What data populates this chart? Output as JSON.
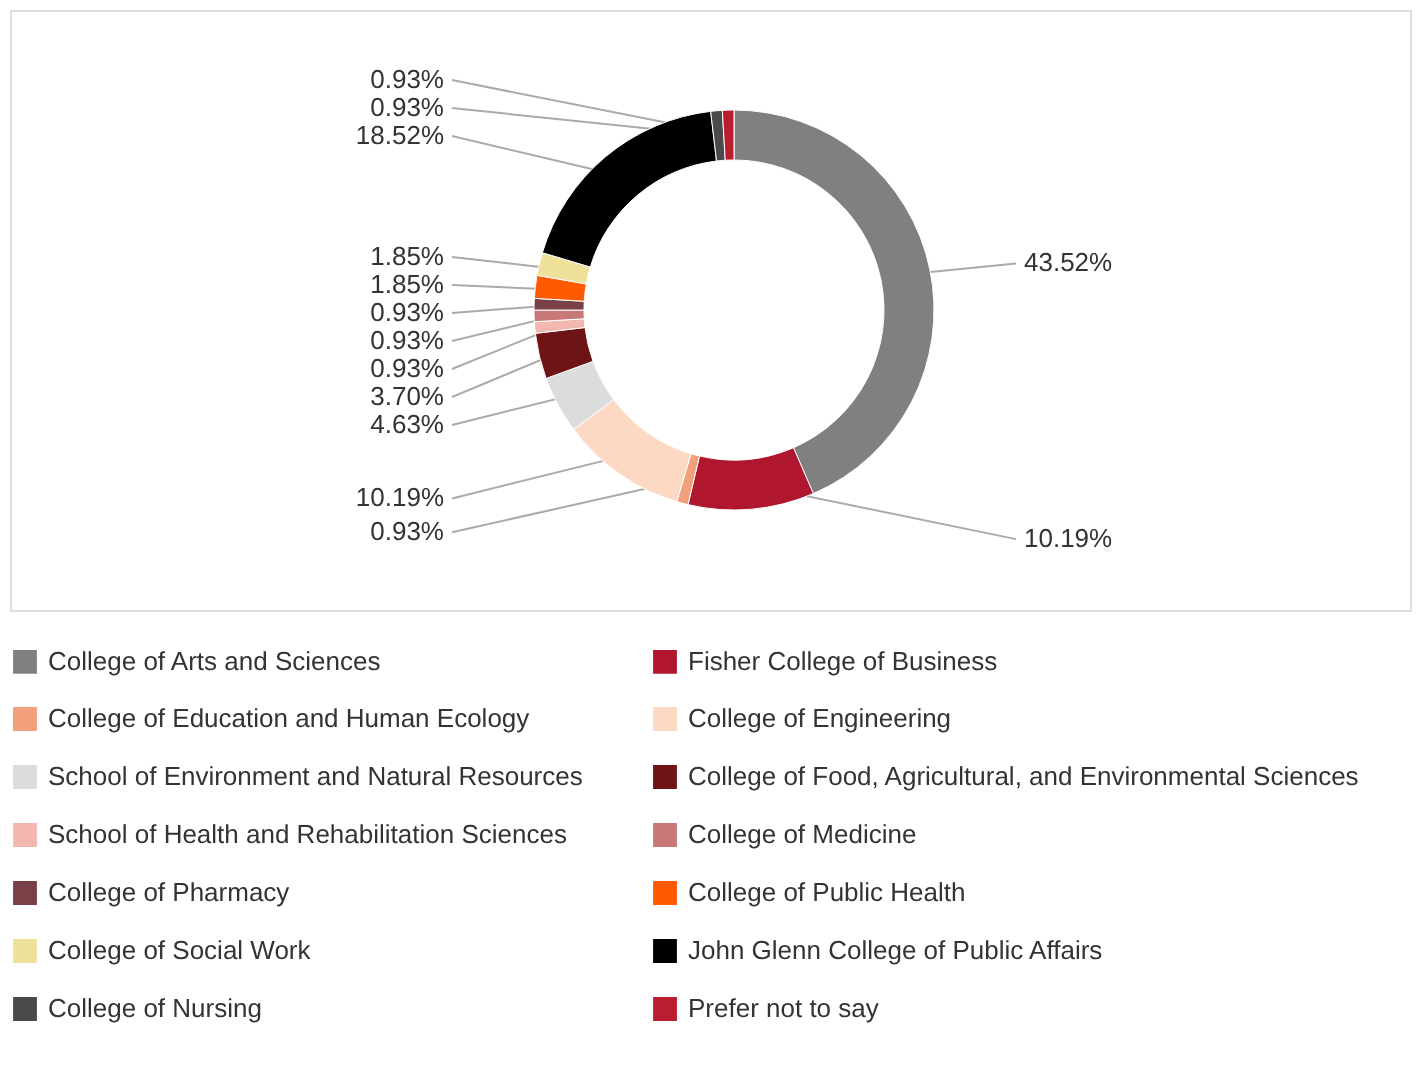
{
  "chart_data": {
    "type": "donut",
    "categories": [
      "College of Arts and Sciences",
      "Fisher College of Business",
      "College of Education and Human Ecology",
      "College of Engineering",
      "School of Environment and Natural Resources",
      "College of Food, Agricultural, and Environmental Sciences",
      "School of Health and Rehabilitation Sciences",
      "College of Medicine",
      "College of Pharmacy",
      "College of Public Health",
      "College of Social Work",
      "John Glenn College of Public Affairs",
      "College of Nursing",
      "Prefer not to say"
    ],
    "values": [
      43.52,
      10.19,
      0.93,
      10.19,
      4.63,
      3.7,
      0.93,
      0.93,
      0.93,
      1.85,
      1.85,
      18.52,
      0.93,
      0.93
    ],
    "value_labels": [
      "43.52%",
      "10.19%",
      "0.93%",
      "10.19%",
      "4.63%",
      "3.70%",
      "0.93%",
      "0.93%",
      "0.93%",
      "1.85%",
      "1.85%",
      "18.52%",
      "0.93%",
      "0.93%"
    ],
    "colors": [
      "#808080",
      "#b0172e",
      "#f2a07c",
      "#fdd9c4",
      "#dcdcdc",
      "#6e1414",
      "#f2b8b0",
      "#c97878",
      "#7a4048",
      "#ff5a00",
      "#efe09a",
      "#000000",
      "#4a4a4a",
      "#ba1c30"
    ],
    "legend": "bottom"
  }
}
